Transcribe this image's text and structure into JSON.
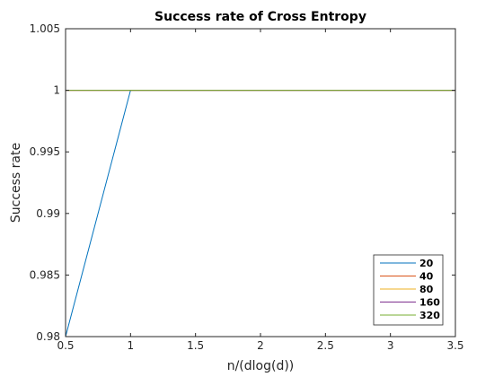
{
  "chart_data": {
    "type": "line",
    "title": "Success rate of Cross Entropy",
    "xlabel": "n/(dlog(d))",
    "ylabel": "Success rate",
    "xlim": [
      0.5,
      3.5
    ],
    "ylim": [
      0.98,
      1.005
    ],
    "xticks": [
      "0.5",
      "1",
      "1.5",
      "2",
      "2.5",
      "3",
      "3.5"
    ],
    "yticks": [
      "0.98",
      "0.985",
      "0.99",
      "0.995",
      "1",
      "1.005"
    ],
    "grid": false,
    "legend_position": "bottom-right",
    "x": [
      0.5,
      1,
      1.5,
      2,
      2.5,
      3,
      3.5
    ],
    "series": [
      {
        "name": "20",
        "color": "#0072BD",
        "values": [
          0.98,
          1,
          1,
          1,
          1,
          1,
          1
        ]
      },
      {
        "name": "40",
        "color": "#D95319",
        "values": [
          1,
          1,
          1,
          1,
          1,
          1,
          1
        ]
      },
      {
        "name": "80",
        "color": "#EDB120",
        "values": [
          1,
          1,
          1,
          1,
          1,
          1,
          1
        ]
      },
      {
        "name": "160",
        "color": "#7E2F8E",
        "values": [
          1,
          1,
          1,
          1,
          1,
          1,
          1
        ]
      },
      {
        "name": "320",
        "color": "#77AC30",
        "values": [
          1,
          1,
          1,
          1,
          1,
          1,
          1
        ]
      }
    ]
  }
}
